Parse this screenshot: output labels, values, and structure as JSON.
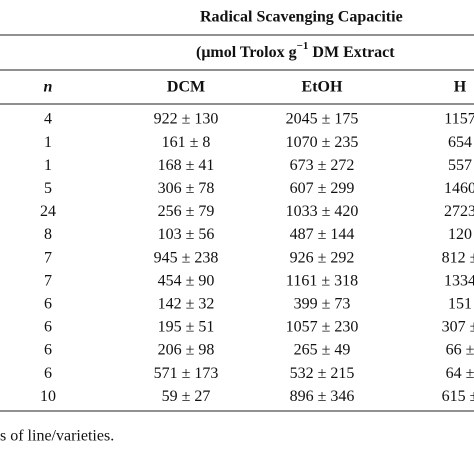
{
  "table": {
    "title": "Radical Scavenging Capacitie",
    "subtitle": {
      "before": "(μmol Trolox g",
      "sup": "−1",
      "after": " DM Extract"
    },
    "columns": [
      "n",
      "DCM",
      "EtOH",
      "H"
    ],
    "rows": [
      [
        "4",
        "922 ± 130",
        "2045 ± 175",
        "1157"
      ],
      [
        "1",
        "161 ± 8",
        "1070 ± 235",
        "654"
      ],
      [
        "1",
        "168 ± 41",
        "673 ± 272",
        "557"
      ],
      [
        "5",
        "306 ± 78",
        "607 ± 299",
        "1460"
      ],
      [
        "24",
        "256 ± 79",
        "1033 ± 420",
        "2723"
      ],
      [
        "8",
        "103 ± 56",
        "487 ± 144",
        "120"
      ],
      [
        "7",
        "945 ± 238",
        "926 ± 292",
        "812 ±"
      ],
      [
        "7",
        "454 ± 90",
        "1161 ± 318",
        "1334"
      ],
      [
        "6",
        "142 ± 32",
        "399 ± 73",
        "151"
      ],
      [
        "6",
        "195 ± 51",
        "1057 ± 230",
        "307 ±"
      ],
      [
        "6",
        "206 ± 98",
        "265 ± 49",
        "66 ±"
      ],
      [
        "6",
        "571 ± 173",
        "532 ± 215",
        "64 ±"
      ],
      [
        "10",
        "59 ± 27",
        "896 ± 346",
        "615 ±"
      ]
    ],
    "footnote": "s of line/varieties."
  }
}
